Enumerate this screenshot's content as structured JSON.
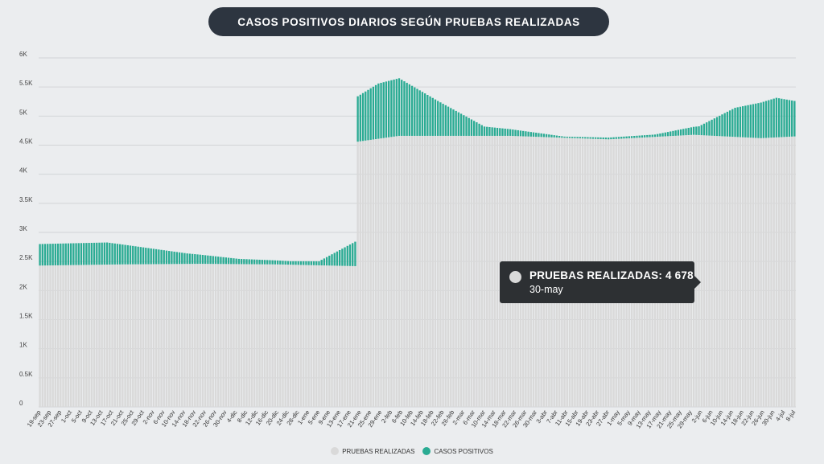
{
  "title": "CASOS POSITIVOS DIARIOS SEGÚN PRUEBAS REALIZADAS",
  "colors": {
    "pruebas": "#d9d9d9",
    "casos": "#2aab93",
    "grid": "#d2d4d7"
  },
  "tooltip": {
    "series": "PRUEBAS REALIZADAS: 4 678",
    "date": "30-may"
  },
  "legend": [
    {
      "label": "PRUEBAS REALIZADAS",
      "color": "#d9d9d9"
    },
    {
      "label": "CASOS POSITIVOS",
      "color": "#2aab93"
    }
  ],
  "chart_data": {
    "type": "bar",
    "stacked": true,
    "x_start": "2020-09-19",
    "x_end": "2021-07-08",
    "ylim": [
      0,
      6000
    ],
    "y_ticks": [
      "0",
      "0.5K",
      "1K",
      "1.5K",
      "2K",
      "2.5K",
      "3K",
      "3.5K",
      "4K",
      "4.5K",
      "5K",
      "5.5K",
      "6K"
    ],
    "x_tick_labels": [
      "19-sep",
      "23-sep",
      "27-sep",
      "1-oct",
      "5-oct",
      "9-oct",
      "13-oct",
      "17-oct",
      "21-oct",
      "25-oct",
      "29-oct",
      "2-nov",
      "6-nov",
      "10-nov",
      "14-nov",
      "18-nov",
      "22-nov",
      "26-nov",
      "30-nov",
      "4-dic",
      "8-dic",
      "12-dic",
      "16-dic",
      "20-dic",
      "24-dic",
      "28-dic",
      "1-ene",
      "5-ene",
      "9-ene",
      "13-ene",
      "17-ene",
      "21-ene",
      "25-ene",
      "29-ene",
      "2-feb",
      "6-feb",
      "10-feb",
      "14-feb",
      "18-feb",
      "22-feb",
      "26-feb",
      "2-mar",
      "6-mar",
      "10-mar",
      "14-mar",
      "18-mar",
      "22-mar",
      "26-mar",
      "30-mar",
      "3-abr",
      "7-abr",
      "11-abr",
      "15-abr",
      "19-abr",
      "23-abr",
      "27-abr",
      "1-may",
      "5-may",
      "9-may",
      "13-may",
      "17-may",
      "21-may",
      "25-may",
      "29-may",
      "2-jun",
      "6-jun",
      "10-jun",
      "14-jun",
      "18-jun",
      "22-jun",
      "26-jun",
      "30-jun",
      "4-jul",
      "8-jul"
    ],
    "series": [
      {
        "name": "PRUEBAS REALIZADAS",
        "key_points": [
          [
            "2020-09-19",
            2430
          ],
          [
            "2020-10-20",
            2450
          ],
          [
            "2020-11-20",
            2460
          ],
          [
            "2020-12-20",
            2450
          ],
          [
            "2021-01-19",
            2420
          ],
          [
            "2021-01-20",
            4560
          ],
          [
            "2021-02-05",
            4660
          ],
          [
            "2021-03-20",
            4660
          ],
          [
            "2021-04-27",
            4600
          ],
          [
            "2021-05-30",
            4678
          ],
          [
            "2021-06-25",
            4620
          ],
          [
            "2021-07-08",
            4650
          ]
        ]
      },
      {
        "name": "CASOS POSITIVOS",
        "key_points": [
          [
            "2020-09-19",
            370
          ],
          [
            "2020-10-15",
            380
          ],
          [
            "2020-11-15",
            180
          ],
          [
            "2020-12-05",
            90
          ],
          [
            "2020-12-25",
            60
          ],
          [
            "2021-01-05",
            70
          ],
          [
            "2021-01-19",
            420
          ],
          [
            "2021-01-20",
            780
          ],
          [
            "2021-01-28",
            950
          ],
          [
            "2021-02-05",
            990
          ],
          [
            "2021-02-20",
            600
          ],
          [
            "2021-03-10",
            160
          ],
          [
            "2021-04-10",
            20
          ],
          [
            "2021-05-15",
            40
          ],
          [
            "2021-06-01",
            150
          ],
          [
            "2021-06-15",
            500
          ],
          [
            "2021-07-01",
            680
          ],
          [
            "2021-07-08",
            610
          ]
        ]
      }
    ]
  }
}
